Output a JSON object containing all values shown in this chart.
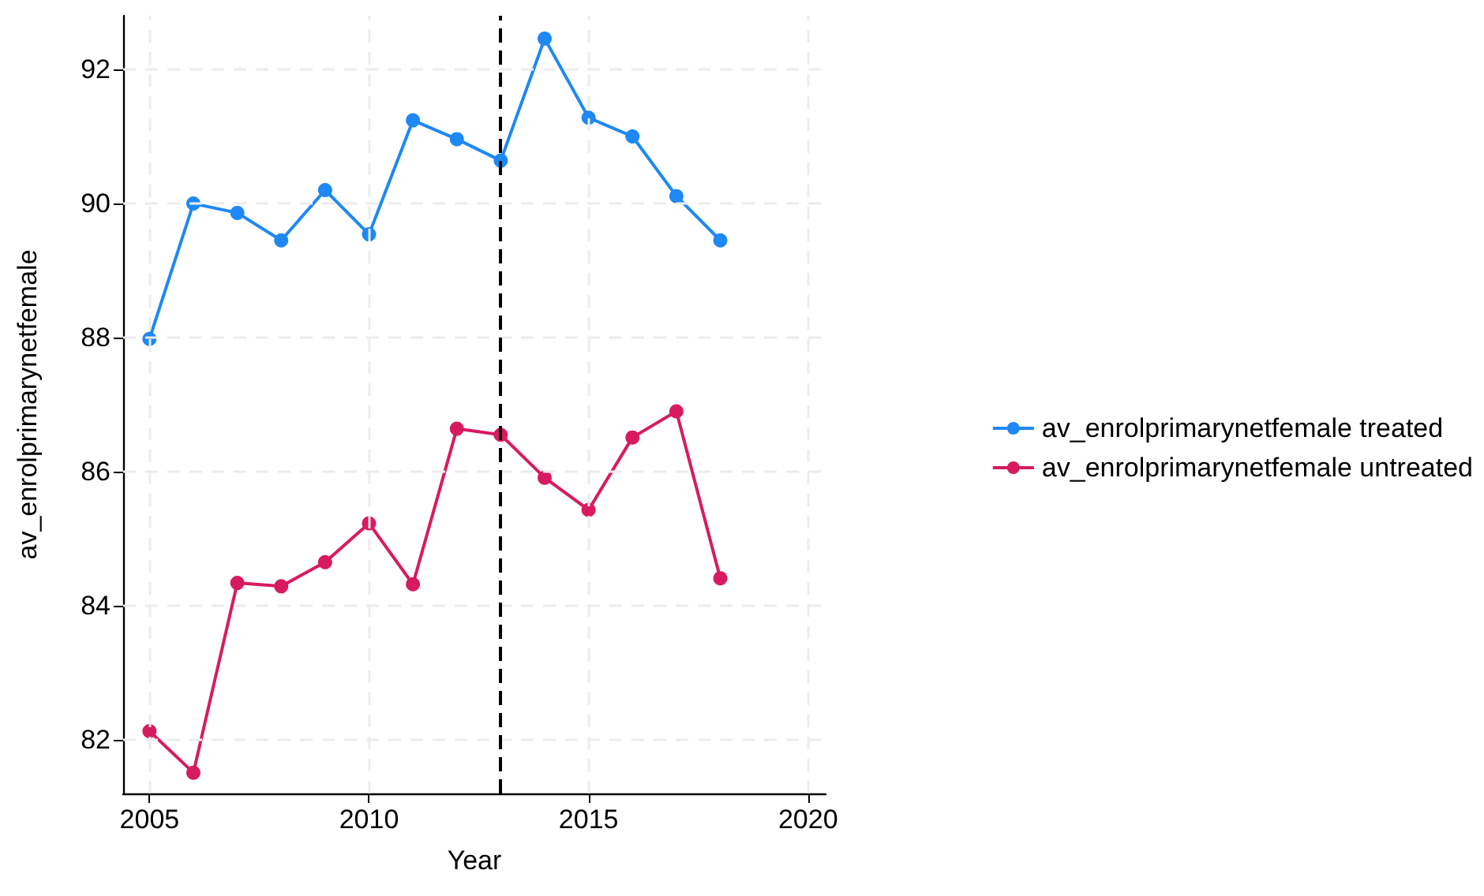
{
  "chart_data": {
    "type": "line",
    "xlabel": "Year",
    "ylabel": "av_enrolprimarynetfemale",
    "x": [
      2005,
      2006,
      2007,
      2008,
      2009,
      2010,
      2011,
      2012,
      2013,
      2014,
      2015,
      2016,
      2017,
      2018
    ],
    "series": [
      {
        "name": "av_enrolprimarynetfemale treated",
        "color": "#1e88f5",
        "values": [
          87.98,
          90.0,
          89.86,
          89.45,
          90.2,
          89.54,
          91.24,
          90.96,
          90.64,
          92.46,
          91.28,
          91.0,
          90.11,
          89.45
        ]
      },
      {
        "name": "av_enrolprimarynetfemale untreated",
        "color": "#d81b60",
        "values": [
          82.13,
          81.51,
          84.34,
          84.29,
          84.65,
          85.23,
          84.32,
          86.64,
          86.55,
          85.91,
          85.43,
          86.51,
          86.9,
          84.41
        ]
      }
    ],
    "xlim": [
      2004.4,
      2020.4
    ],
    "xticks": [
      2005,
      2010,
      2015,
      2020
    ],
    "ylim": [
      81.2,
      92.8
    ],
    "yticks": [
      82,
      84,
      86,
      88,
      90,
      92
    ],
    "ref_lines": [
      {
        "axis": "x",
        "value": 2013,
        "color": "#000000",
        "line_style": "dashed"
      }
    ],
    "grid": true,
    "legend": "right",
    "marker": "circle",
    "line_style": "solid"
  }
}
